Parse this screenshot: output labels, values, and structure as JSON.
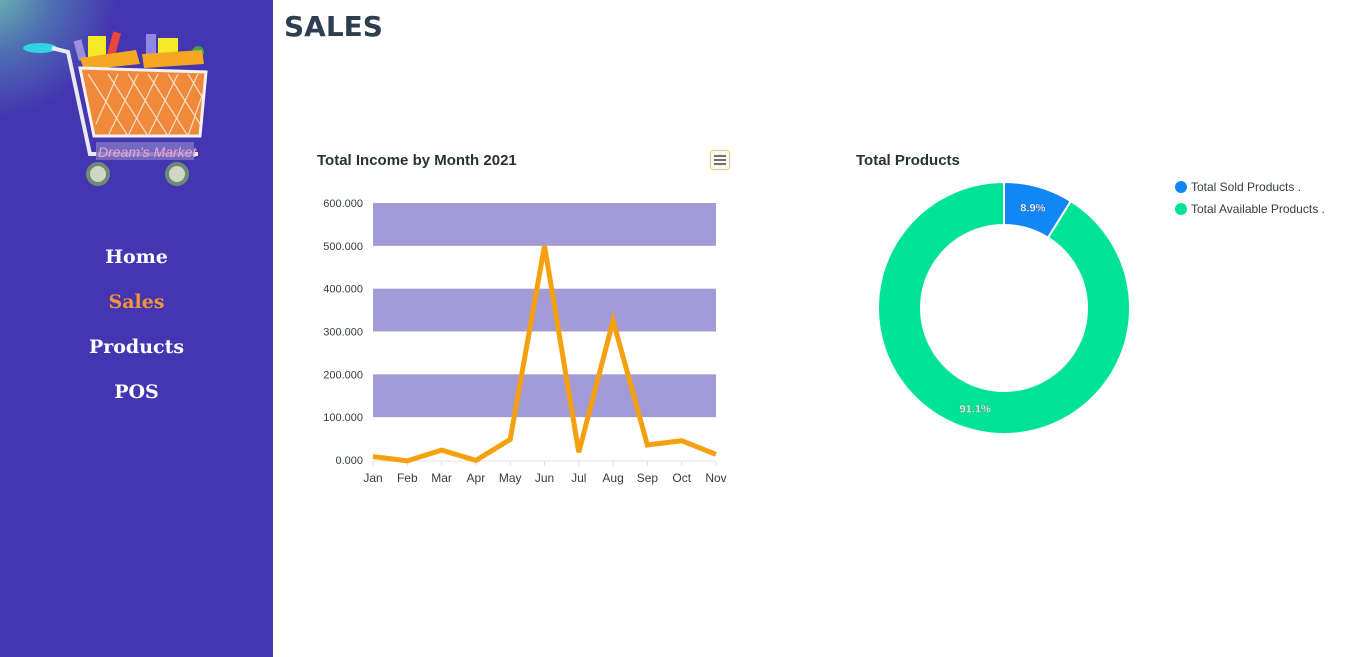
{
  "app": {
    "logo_text": "Dream's Market"
  },
  "page": {
    "title": "SALES"
  },
  "nav": {
    "items": [
      {
        "label": "Home",
        "active": false
      },
      {
        "label": "Sales",
        "active": true
      },
      {
        "label": "Products",
        "active": false
      },
      {
        "label": "POS",
        "active": false
      }
    ]
  },
  "colors": {
    "sidebar": "#4435b0",
    "active_nav": "#f3933a",
    "line": "#f5a00e",
    "band": "#a39bd8",
    "sold": "#1187f5",
    "available": "#00e396"
  },
  "income_chart": {
    "title": "Total Income by Month 2021",
    "menu_icon": "hamburger-menu-icon"
  },
  "products_chart": {
    "title": "Total Products"
  },
  "chart_data": [
    {
      "type": "line",
      "title": "Total Income by Month 2021",
      "categories": [
        "Jan",
        "Feb",
        "Mar",
        "Apr",
        "May",
        "Jun",
        "Jul",
        "Aug",
        "Sep",
        "Oct",
        "Nov"
      ],
      "series": [
        {
          "values": [
            8,
            -2,
            23,
            -1,
            48,
            500,
            18,
            325,
            35,
            45,
            13
          ]
        }
      ],
      "y_ticks": [
        "0.000",
        "100.000",
        "200.000",
        "300.000",
        "400.000",
        "500.000",
        "600.000"
      ],
      "ylim": [
        0,
        600
      ],
      "grid": "alternating horizontal bands"
    },
    {
      "type": "pie",
      "title": "Total Products",
      "labels": [
        "Total Sold Products .",
        "Total Available Products ."
      ],
      "values": [
        8.9,
        91.1
      ],
      "value_labels": [
        "8.9%",
        "91.1%"
      ],
      "legend": "top-right",
      "donut": true
    }
  ]
}
